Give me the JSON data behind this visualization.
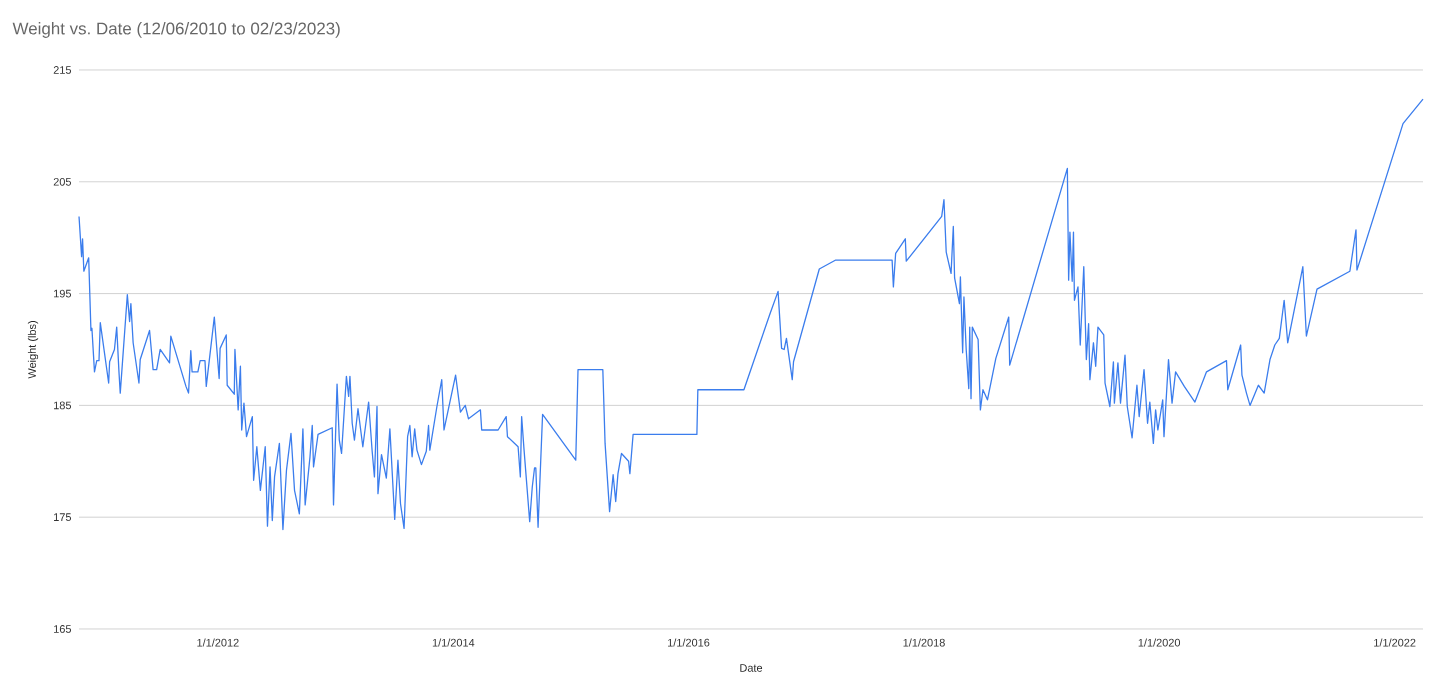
{
  "chart_data": {
    "type": "line",
    "title": "Weight vs. Date (12/06/2010 to 02/23/2023)",
    "xlabel": "Date",
    "ylabel": "Weight (lbs)",
    "xlim": [
      "2010-10-27",
      "2022-03-30"
    ],
    "ylim": [
      165,
      215
    ],
    "xticks": [
      {
        "value": "2012-01-01",
        "label": "1/1/2012"
      },
      {
        "value": "2014-01-01",
        "label": "1/1/2014"
      },
      {
        "value": "2016-01-01",
        "label": "1/1/2016"
      },
      {
        "value": "2018-01-01",
        "label": "1/1/2018"
      },
      {
        "value": "2020-01-01",
        "label": "1/1/2020"
      },
      {
        "value": "2022-01-01",
        "label": "1/1/2022"
      }
    ],
    "yticks": [
      165,
      175,
      185,
      195,
      205,
      215
    ],
    "grid": "y",
    "x": [
      "2010-10-27",
      "2010-11-04",
      "2010-11-07",
      "2010-11-11",
      "2010-11-26",
      "2010-12-03",
      "2010-12-06",
      "2010-12-14",
      "2010-12-21",
      "2010-12-28",
      "2011-01-01",
      "2011-01-27",
      "2011-01-30",
      "2011-02-14",
      "2011-02-21",
      "2011-02-28",
      "2011-03-04",
      "2011-03-26",
      "2011-04-02",
      "2011-04-06",
      "2011-04-13",
      "2011-05-01",
      "2011-05-05",
      "2011-06-03",
      "2011-06-14",
      "2011-06-25",
      "2011-07-06",
      "2011-08-04",
      "2011-08-08",
      "2011-09-24",
      "2011-10-02",
      "2011-10-09",
      "2011-10-13",
      "2011-10-31",
      "2011-11-07",
      "2011-11-22",
      "2011-11-26",
      "2011-12-21",
      "2012-01-05",
      "2012-01-08",
      "2012-01-27",
      "2012-01-30",
      "2012-02-21",
      "2012-02-23",
      "2012-03-04",
      "2012-03-11",
      "2012-03-15",
      "2012-03-22",
      "2012-03-30",
      "2012-04-17",
      "2012-04-21",
      "2012-05-01",
      "2012-05-12",
      "2012-05-27",
      "2012-06-03",
      "2012-06-11",
      "2012-06-18",
      "2012-06-25",
      "2012-07-10",
      "2012-07-21",
      "2012-08-01",
      "2012-08-15",
      "2012-08-26",
      "2012-09-10",
      "2012-09-21",
      "2012-09-28",
      "2012-10-13",
      "2012-10-20",
      "2012-10-24",
      "2012-11-07",
      "2012-12-21",
      "2012-12-25",
      "2013-01-05",
      "2013-01-12",
      "2013-01-19",
      "2013-02-03",
      "2013-02-10",
      "2013-02-14",
      "2013-02-21",
      "2013-02-28",
      "2013-03-11",
      "2013-03-26",
      "2013-04-13",
      "2013-04-24",
      "2013-05-01",
      "2013-05-09",
      "2013-05-12",
      "2013-05-23",
      "2013-06-07",
      "2013-06-18",
      "2013-07-03",
      "2013-07-13",
      "2013-07-21",
      "2013-08-01",
      "2013-08-12",
      "2013-08-19",
      "2013-08-26",
      "2013-09-03",
      "2013-09-10",
      "2013-09-24",
      "2013-10-09",
      "2013-10-16",
      "2013-10-20",
      "2013-11-11",
      "2013-11-26",
      "2013-12-03",
      "2014-01-08",
      "2014-01-23",
      "2014-02-07",
      "2014-02-17",
      "2014-03-26",
      "2014-03-30",
      "2014-05-20",
      "2014-06-14",
      "2014-06-18",
      "2014-07-21",
      "2014-07-28",
      "2014-08-01",
      "2014-08-08",
      "2014-08-26",
      "2014-09-03",
      "2014-09-10",
      "2014-09-14",
      "2014-09-21",
      "2014-10-05",
      "2015-01-16",
      "2015-01-23",
      "2015-04-10",
      "2015-04-17",
      "2015-05-01",
      "2015-05-12",
      "2015-05-20",
      "2015-05-27",
      "2015-06-07",
      "2015-06-29",
      "2015-07-03",
      "2015-07-13",
      "2016-01-27",
      "2016-01-30",
      "2016-06-21",
      "2016-09-10",
      "2016-10-05",
      "2016-10-16",
      "2016-10-24",
      "2016-10-31",
      "2016-11-18",
      "2016-11-22",
      "2017-02-10",
      "2017-04-02",
      "2017-09-24",
      "2017-09-28",
      "2017-10-05",
      "2017-11-04",
      "2017-11-07",
      "2018-02-25",
      "2018-03-04",
      "2018-03-11",
      "2018-03-26",
      "2018-04-02",
      "2018-04-06",
      "2018-04-21",
      "2018-04-24",
      "2018-05-01",
      "2018-05-05",
      "2018-05-12",
      "2018-05-20",
      "2018-05-23",
      "2018-05-27",
      "2018-05-31",
      "2018-06-18",
      "2018-06-25",
      "2018-07-03",
      "2018-07-17",
      "2018-08-12",
      "2018-09-21",
      "2018-09-24",
      "2019-03-22",
      "2019-03-26",
      "2019-03-30",
      "2019-04-06",
      "2019-04-10",
      "2019-04-13",
      "2019-04-24",
      "2019-05-01",
      "2019-05-12",
      "2019-05-20",
      "2019-05-27",
      "2019-05-31",
      "2019-06-11",
      "2019-06-18",
      "2019-06-25",
      "2019-07-13",
      "2019-07-17",
      "2019-08-01",
      "2019-08-12",
      "2019-08-15",
      "2019-08-26",
      "2019-09-03",
      "2019-09-17",
      "2019-09-24",
      "2019-10-09",
      "2019-10-24",
      "2019-10-31",
      "2019-11-15",
      "2019-11-26",
      "2019-12-03",
      "2019-12-14",
      "2019-12-21",
      "2019-12-28",
      "2020-01-12",
      "2020-01-16",
      "2020-01-30",
      "2020-02-10",
      "2020-02-21",
      "2020-03-19",
      "2020-04-21",
      "2020-05-27",
      "2020-07-28",
      "2020-08-01",
      "2020-09-10",
      "2020-09-14",
      "2020-09-28",
      "2020-10-09",
      "2020-11-04",
      "2020-11-22",
      "2020-12-10",
      "2020-12-25",
      "2021-01-08",
      "2021-01-23",
      "2021-02-03",
      "2021-03-22",
      "2021-04-02",
      "2021-05-05",
      "2021-08-15",
      "2021-09-03",
      "2021-09-06",
      "2022-01-27",
      "2022-03-30"
    ],
    "series": [
      {
        "color": "#3b7ded",
        "values": [
          201.9,
          198.3,
          199.9,
          197.0,
          198.2,
          191.7,
          191.9,
          188.0,
          189.0,
          189.0,
          192.4,
          187.0,
          188.9,
          190.0,
          192.0,
          188.0,
          186.1,
          194.9,
          192.5,
          194.1,
          190.6,
          187.0,
          189.1,
          191.7,
          188.2,
          188.2,
          190.0,
          188.8,
          191.2,
          186.7,
          186.1,
          189.9,
          188.0,
          188.0,
          189.0,
          189.0,
          186.7,
          192.9,
          187.4,
          190.1,
          191.3,
          186.8,
          186.0,
          190.0,
          184.6,
          188.5,
          182.8,
          185.2,
          182.2,
          184.0,
          178.3,
          181.3,
          177.4,
          181.3,
          174.2,
          179.5,
          174.7,
          178.6,
          181.6,
          173.9,
          179.2,
          182.5,
          177.4,
          175.3,
          182.9,
          176.1,
          180.4,
          183.2,
          179.5,
          182.4,
          183.0,
          176.1,
          186.9,
          181.9,
          180.7,
          187.6,
          185.8,
          187.6,
          183.4,
          181.9,
          184.7,
          181.3,
          185.3,
          180.9,
          178.6,
          184.9,
          177.1,
          180.6,
          178.5,
          182.9,
          174.8,
          180.1,
          176.2,
          174.0,
          182.2,
          183.2,
          180.4,
          182.9,
          181.0,
          179.7,
          180.9,
          183.2,
          181.0,
          184.9,
          187.3,
          182.8,
          187.7,
          184.4,
          185.0,
          183.8,
          184.6,
          182.8,
          182.8,
          184.0,
          182.2,
          181.3,
          178.6,
          184.0,
          181.2,
          174.6,
          177.7,
          179.4,
          179.4,
          174.1,
          184.2,
          180.1,
          188.2,
          188.2,
          181.6,
          175.5,
          178.8,
          176.4,
          178.9,
          180.7,
          180.0,
          178.9,
          182.4,
          182.4,
          186.4,
          186.4,
          193.2,
          195.2,
          190.1,
          190.0,
          191.0,
          187.3,
          188.9,
          197.2,
          198.0,
          198.0,
          195.6,
          198.6,
          199.9,
          197.9,
          201.9,
          203.4,
          198.7,
          196.8,
          201.0,
          196.4,
          194.1,
          196.5,
          189.7,
          194.7,
          190.0,
          186.5,
          192.0,
          185.6,
          192.0,
          190.9,
          184.6,
          186.4,
          185.5,
          189.2,
          192.9,
          188.6,
          206.2,
          196.2,
          200.5,
          196.1,
          200.5,
          194.4,
          195.6,
          190.4,
          197.4,
          189.1,
          192.3,
          187.3,
          190.6,
          188.5,
          192.0,
          191.3,
          187.0,
          184.9,
          188.9,
          185.2,
          188.8,
          185.2,
          189.5,
          184.9,
          182.1,
          186.8,
          184.0,
          188.2,
          183.4,
          185.3,
          181.6,
          184.6,
          182.8,
          185.5,
          182.2,
          189.1,
          185.2,
          188.0,
          186.7,
          185.3,
          188.0,
          189.0,
          186.4,
          190.4,
          187.7,
          186.1,
          185.0,
          186.8,
          186.1,
          189.1,
          190.4,
          191.0,
          194.4,
          190.6,
          197.4,
          191.2,
          195.4,
          197.0,
          200.7,
          197.1,
          210.2,
          212.4
        ]
      }
    ]
  }
}
